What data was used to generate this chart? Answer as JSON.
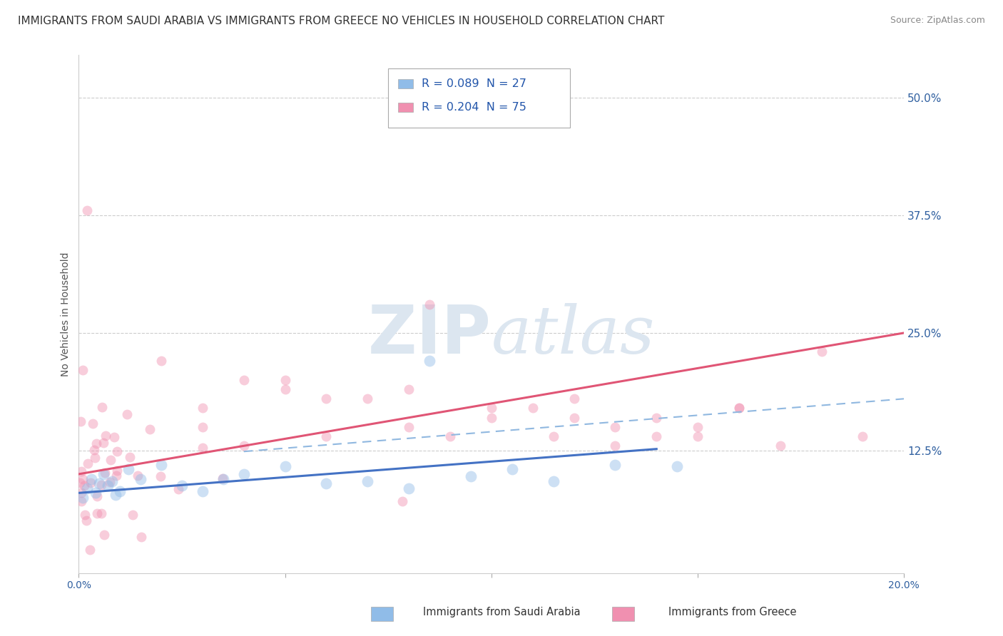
{
  "title": "IMMIGRANTS FROM SAUDI ARABIA VS IMMIGRANTS FROM GREECE NO VEHICLES IN HOUSEHOLD CORRELATION CHART",
  "source": "Source: ZipAtlas.com",
  "ylabel": "No Vehicles in Household",
  "ytick_labels": [
    "50.0%",
    "37.5%",
    "25.0%",
    "12.5%"
  ],
  "ytick_values": [
    0.5,
    0.375,
    0.25,
    0.125
  ],
  "xlim": [
    0.0,
    0.2
  ],
  "ylim": [
    -0.005,
    0.545
  ],
  "saudi_color": "#90bce8",
  "greece_color": "#f090b0",
  "saudi_line_color": "#4472c4",
  "greece_line_color": "#e05575",
  "dashed_line_color": "#90b8e0",
  "background_color": "#ffffff",
  "watermark_color": "#dce6f0",
  "marker_size": 100,
  "marker_alpha": 0.45,
  "title_fontsize": 11,
  "axis_label_fontsize": 10,
  "tick_fontsize": 10,
  "legend_label1": "R = 0.089  N = 27",
  "legend_label2": "R = 0.204  N = 75",
  "bottom_label1": "Immigrants from Saudi Arabia",
  "bottom_label2": "Immigrants from Greece"
}
